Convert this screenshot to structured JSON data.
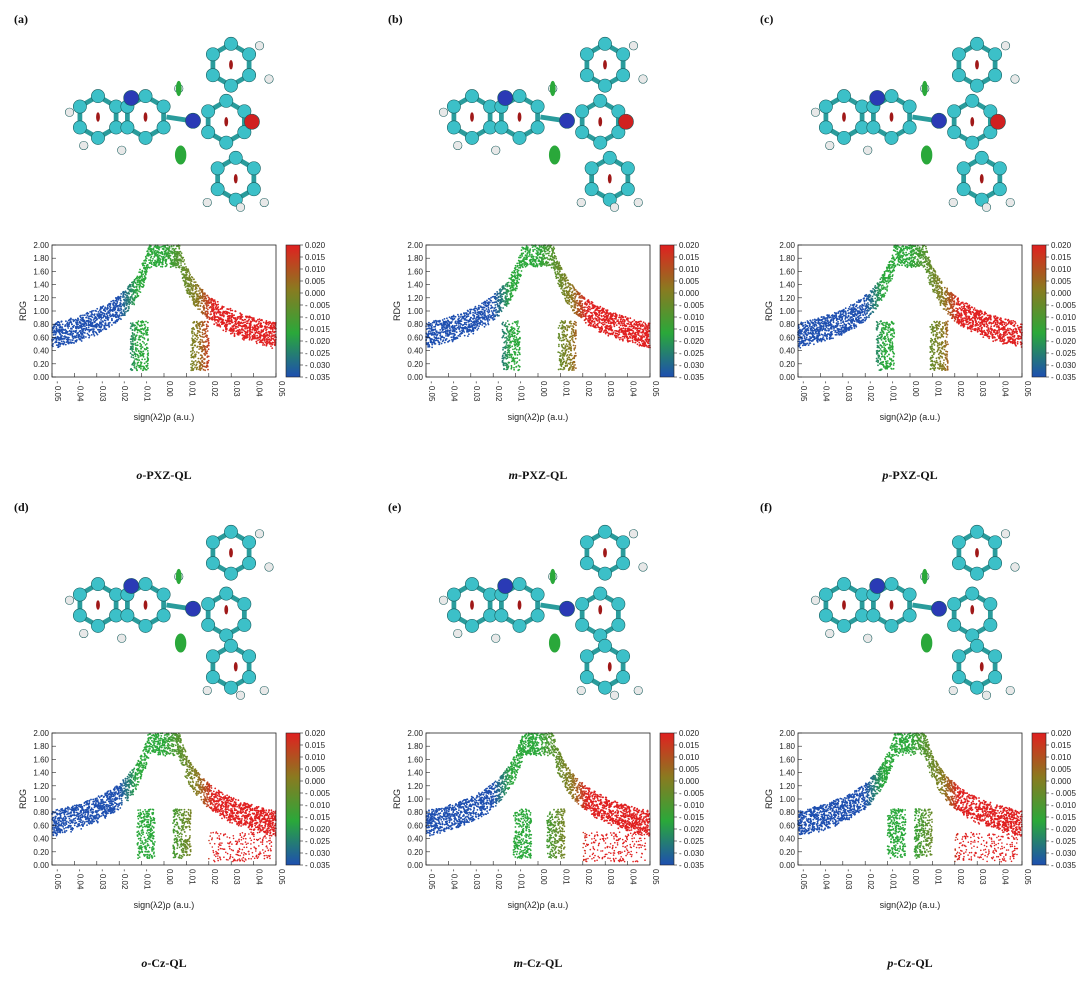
{
  "panels": [
    {
      "letter": "(a)",
      "prefix": "o",
      "name": "-PXZ-QL",
      "variant": "pxz",
      "dip1": -0.011,
      "dip2": 0.016,
      "rightTail": false
    },
    {
      "letter": "(b)",
      "prefix": "m",
      "name": "-PXZ-QL",
      "variant": "pxz",
      "dip1": -0.012,
      "dip2": 0.013,
      "rightTail": false
    },
    {
      "letter": "(c)",
      "prefix": "p",
      "name": "-PXZ-QL",
      "variant": "pxz",
      "dip1": -0.011,
      "dip2": 0.013,
      "rightTail": false
    },
    {
      "letter": "(d)",
      "prefix": "o",
      "name": "-Cz-QL",
      "variant": "cz",
      "dip1": -0.008,
      "dip2": 0.008,
      "rightTail": true
    },
    {
      "letter": "(e)",
      "prefix": "m",
      "name": "-Cz-QL",
      "variant": "cz",
      "dip1": -0.007,
      "dip2": 0.008,
      "rightTail": true
    },
    {
      "letter": "(f)",
      "prefix": "p",
      "name": "-Cz-QL",
      "variant": "cz",
      "dip1": -0.006,
      "dip2": 0.006,
      "rightTail": true
    }
  ],
  "chart_data": {
    "type": "scatter",
    "xlabel": "sign(λ2)ρ (a.u.)",
    "ylabel": "RDG",
    "xlim": [
      -0.05,
      0.05
    ],
    "ylim": [
      0.0,
      2.0
    ],
    "xticks": [
      "-0.05",
      "-0.04",
      "-0.03",
      "-0.02",
      "-0.01",
      "0.00",
      "0.01",
      "0.02",
      "0.03",
      "0.04",
      "0.05"
    ],
    "yticks": [
      "0.00",
      "0.20",
      "0.40",
      "0.60",
      "0.80",
      "1.00",
      "1.20",
      "1.40",
      "1.60",
      "1.80",
      "2.00"
    ],
    "colorbar": {
      "ticks": [
        "0.020",
        "0.015",
        "0.010",
        "0.005",
        "0.000",
        "- 0.005",
        "- 0.010",
        "- 0.015",
        "- 0.020",
        "- 0.025",
        "- 0.030",
        "- 0.035"
      ],
      "colors": [
        "#e02020",
        "#8a7a20",
        "#2aa83a",
        "#1e4fb0"
      ]
    }
  }
}
